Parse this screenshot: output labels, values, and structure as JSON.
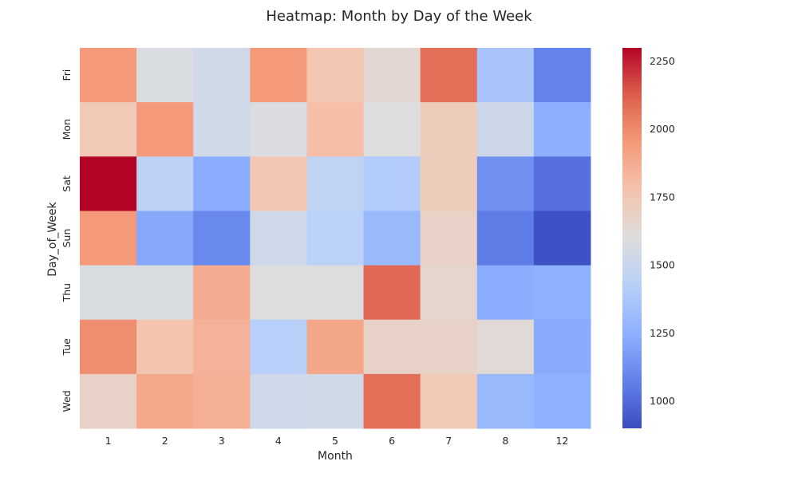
{
  "chart_data": {
    "type": "heatmap",
    "title": "Heatmap: Month by Day of the Week",
    "xlabel": "Month",
    "ylabel": "Day_of_Week",
    "x_categories": [
      "1",
      "2",
      "3",
      "4",
      "5",
      "6",
      "7",
      "8",
      "12"
    ],
    "y_categories": [
      "Fri",
      "Mon",
      "Sat",
      "Sun",
      "Thu",
      "Tue",
      "Wed"
    ],
    "values": [
      [
        1950,
        1580,
        1540,
        1950,
        1760,
        1640,
        2080,
        1360,
        1080
      ],
      [
        1740,
        1950,
        1540,
        1590,
        1800,
        1600,
        1720,
        1520,
        1250
      ],
      [
        2300,
        1450,
        1240,
        1750,
        1460,
        1400,
        1720,
        1130,
        1020
      ],
      [
        1950,
        1220,
        1100,
        1530,
        1440,
        1300,
        1680,
        1060,
        920
      ],
      [
        1580,
        1580,
        1880,
        1600,
        1600,
        2100,
        1650,
        1240,
        1260
      ],
      [
        1990,
        1770,
        1850,
        1420,
        1900,
        1680,
        1680,
        1630,
        1230
      ],
      [
        1680,
        1890,
        1860,
        1530,
        1540,
        2080,
        1740,
        1300,
        1260
      ]
    ],
    "colorbar": {
      "min": 900,
      "max": 2300,
      "ticks": [
        1000,
        1250,
        1500,
        1750,
        2000,
        2250
      ],
      "colormap": "coolwarm"
    },
    "grid": false
  }
}
